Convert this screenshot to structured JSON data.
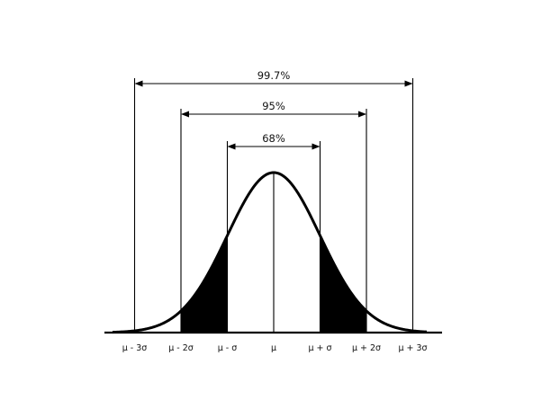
{
  "ranges": [
    {
      "label": "99.7%",
      "from_sigma": -3,
      "to_sigma": 3
    },
    {
      "label": "95%",
      "from_sigma": -2,
      "to_sigma": 2
    },
    {
      "label": "68%",
      "from_sigma": -1,
      "to_sigma": 1
    }
  ],
  "tick_labels": [
    {
      "sigma": -3,
      "label": "μ - 3σ"
    },
    {
      "sigma": -2,
      "label": "μ - 2σ"
    },
    {
      "sigma": -1,
      "label": "μ - σ"
    },
    {
      "sigma": 0,
      "label": "μ"
    },
    {
      "sigma": 1,
      "label": "μ + σ"
    },
    {
      "sigma": 2,
      "label": "μ + 2σ"
    },
    {
      "sigma": 3,
      "label": "μ + 3σ"
    }
  ],
  "shaded_bands_sigma": [
    [
      -2,
      -1
    ],
    [
      1,
      2
    ]
  ],
  "colors": {
    "ink": "#000000",
    "background": "#ffffff"
  }
}
